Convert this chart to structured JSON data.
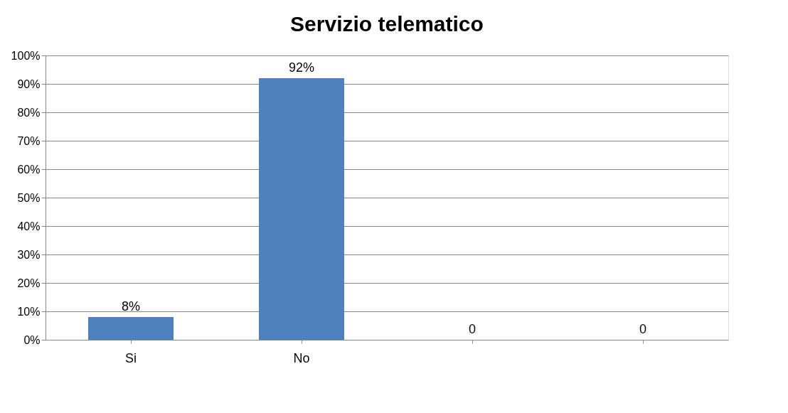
{
  "chart_data": {
    "type": "bar",
    "title": "Servizio telematico",
    "categories": [
      "Si",
      "No",
      null,
      null
    ],
    "values": [
      8,
      92,
      0,
      0
    ],
    "value_labels": [
      "8%",
      "92%",
      "0",
      "0"
    ],
    "color": "#4f81bd",
    "ylim": [
      0,
      100
    ],
    "yticks": [
      {
        "value": 0,
        "label": "0%"
      },
      {
        "value": 10,
        "label": "10%"
      },
      {
        "value": 20,
        "label": "20%"
      },
      {
        "value": 30,
        "label": "30%"
      },
      {
        "value": 40,
        "label": "40%"
      },
      {
        "value": 50,
        "label": "50%"
      },
      {
        "value": 60,
        "label": "60%"
      },
      {
        "value": 70,
        "label": "70%"
      },
      {
        "value": 80,
        "label": "80%"
      },
      {
        "value": 90,
        "label": "90%"
      },
      {
        "value": 100,
        "label": "100%"
      }
    ],
    "grid": "y"
  }
}
